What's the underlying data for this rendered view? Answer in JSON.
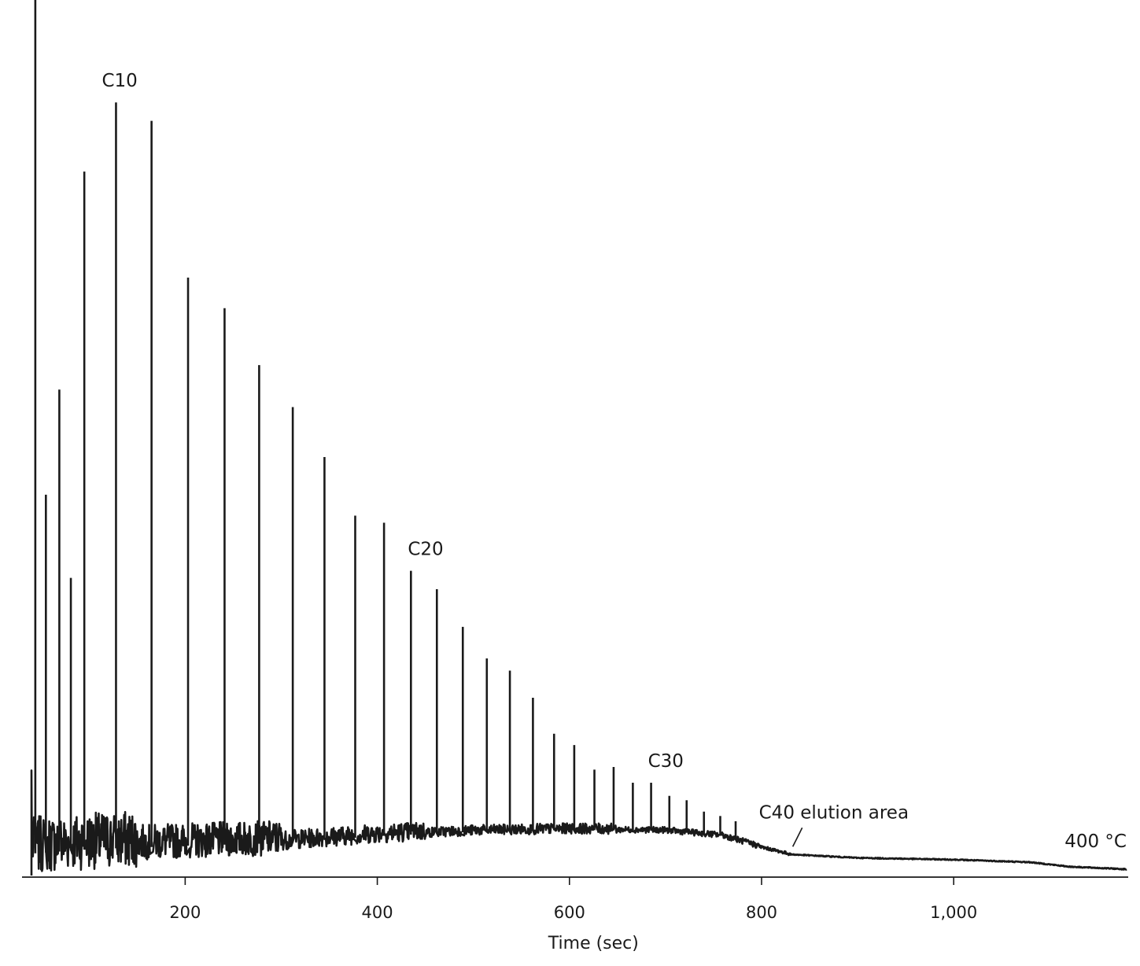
{
  "chart_data": {
    "type": "line",
    "title": "",
    "xlabel": "Time (sec)",
    "ylabel": "",
    "xlim": [
      40,
      1180
    ],
    "ylim": [
      0,
      100
    ],
    "grid": false,
    "legend": "none",
    "line_color": "#1a1a1a",
    "x_ticks": [
      {
        "value": 200,
        "label": "200"
      },
      {
        "value": 400,
        "label": "400"
      },
      {
        "value": 600,
        "label": "600"
      },
      {
        "value": 800,
        "label": "800"
      },
      {
        "value": 1000,
        "label": "1,000"
      }
    ],
    "baseline": {
      "x": [
        40,
        100,
        200,
        300,
        400,
        500,
        600,
        700,
        760,
        800,
        830,
        900,
        1000,
        1080,
        1120,
        1180
      ],
      "y": [
        2.5,
        3.0,
        3.4,
        3.7,
        4.5,
        5.0,
        5.2,
        5.1,
        4.5,
        3.2,
        2.4,
        2.0,
        1.8,
        1.5,
        1.0,
        0.7
      ]
    },
    "peaks": [
      {
        "x": 44,
        "y": 100
      },
      {
        "x": 55,
        "y": 43.5
      },
      {
        "x": 69,
        "y": 55.5
      },
      {
        "x": 81,
        "y": 34
      },
      {
        "x": 95,
        "y": 80.4
      },
      {
        "x": 128,
        "y": 88.3
      },
      {
        "x": 165,
        "y": 86.2
      },
      {
        "x": 203,
        "y": 68.3
      },
      {
        "x": 241,
        "y": 64.8
      },
      {
        "x": 277,
        "y": 58.3
      },
      {
        "x": 312,
        "y": 53.5
      },
      {
        "x": 345,
        "y": 47.8
      },
      {
        "x": 377,
        "y": 41.1
      },
      {
        "x": 407,
        "y": 40.3
      },
      {
        "x": 435,
        "y": 34.8
      },
      {
        "x": 462,
        "y": 32.7
      },
      {
        "x": 489,
        "y": 28.4
      },
      {
        "x": 514,
        "y": 24.8
      },
      {
        "x": 538,
        "y": 23.4
      },
      {
        "x": 562,
        "y": 20.3
      },
      {
        "x": 584,
        "y": 16.2
      },
      {
        "x": 605,
        "y": 14.9
      },
      {
        "x": 626,
        "y": 12.1
      },
      {
        "x": 646,
        "y": 12.4
      },
      {
        "x": 666,
        "y": 10.6
      },
      {
        "x": 685,
        "y": 10.6
      },
      {
        "x": 704,
        "y": 9.1
      },
      {
        "x": 722,
        "y": 8.6
      },
      {
        "x": 740,
        "y": 7.3
      },
      {
        "x": 757,
        "y": 6.8
      },
      {
        "x": 773,
        "y": 6.2
      }
    ],
    "annotations": [
      {
        "text": "C10",
        "x": 128,
        "y": 88.3
      },
      {
        "text": "C20",
        "x": 435,
        "y": 34.8
      },
      {
        "text": "C30",
        "x": 685,
        "y": 10.6
      },
      {
        "text": "C40 elution area",
        "x": 830,
        "y": 2.4
      },
      {
        "text": "400 °C",
        "x": 1180,
        "y": 0.7
      }
    ]
  }
}
